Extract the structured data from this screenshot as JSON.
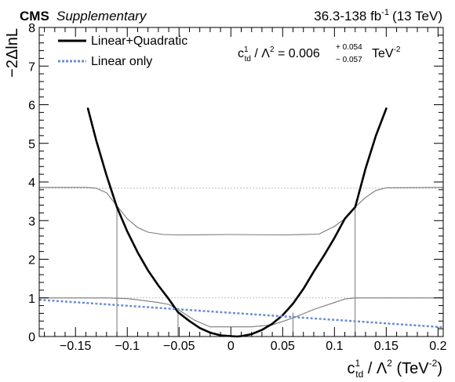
{
  "header": {
    "experiment": "CMS",
    "label": "Supplementary",
    "lumi_main": "36.3-138 fb",
    "lumi_sup": "-1",
    "energy": "(13 TeV)"
  },
  "result": {
    "param_main": "c",
    "param_sup": "1",
    "param_sub": "td",
    "sep": " / ",
    "lambda": "Λ",
    "lambda_sup": "2",
    "equals": " = 0.006",
    "err_up": "+ 0.054",
    "err_down": "− 0.057",
    "unit": "TeV",
    "unit_sup": "-2"
  },
  "axes": {
    "ylabel": "−2ΔlnL",
    "xlabel_main": "c",
    "xlabel_sup": "1",
    "xlabel_sub": "td",
    "xlabel_rest": " / Λ",
    "xlabel_sup2": "2",
    "xlabel_unit": " (TeV",
    "xlabel_unit_sup": "-2",
    "xlabel_close": ")"
  },
  "chart_data": {
    "type": "line",
    "xlim": [
      -0.185,
      0.205
    ],
    "ylim": [
      0,
      8
    ],
    "xticks": [
      {
        "value": -0.15,
        "label": "−0.15"
      },
      {
        "value": -0.1,
        "label": "−0.1"
      },
      {
        "value": -0.05,
        "label": "−0.05"
      },
      {
        "value": 0,
        "label": "0"
      },
      {
        "value": 0.05,
        "label": "0.05"
      },
      {
        "value": 0.1,
        "label": "0.1"
      },
      {
        "value": 0.15,
        "label": "0.15"
      },
      {
        "value": 0.2,
        "label": "0.2"
      }
    ],
    "yticks": [
      {
        "value": 0,
        "label": "0"
      },
      {
        "value": 1,
        "label": "1"
      },
      {
        "value": 2,
        "label": "2"
      },
      {
        "value": 3,
        "label": "3"
      },
      {
        "value": 4,
        "label": "4"
      },
      {
        "value": 5,
        "label": "5"
      },
      {
        "value": 6,
        "label": "6"
      },
      {
        "value": 7,
        "label": "7"
      },
      {
        "value": 8,
        "label": "8"
      }
    ],
    "series": [
      {
        "name": "Linear+Quadratic",
        "color": "#000000",
        "style": "solid",
        "x": [
          -0.138,
          -0.13,
          -0.12,
          -0.11,
          -0.1,
          -0.09,
          -0.08,
          -0.07,
          -0.06,
          -0.051,
          -0.04,
          -0.03,
          -0.02,
          -0.01,
          0,
          0.006,
          0.01,
          0.02,
          0.03,
          0.04,
          0.05,
          0.06,
          0.07,
          0.08,
          0.09,
          0.1,
          0.11,
          0.12,
          0.13,
          0.14,
          0.15
        ],
        "y": [
          5.9,
          5.08,
          4.17,
          3.35,
          2.72,
          2.18,
          1.71,
          1.32,
          0.97,
          0.63,
          0.4,
          0.22,
          0.1,
          0.03,
          0.01,
          0.0,
          0.01,
          0.06,
          0.17,
          0.33,
          0.55,
          0.85,
          1.23,
          1.68,
          2.1,
          2.55,
          3.05,
          3.35,
          4.35,
          5.2,
          5.9
        ]
      },
      {
        "name": "Linear only",
        "color": "#6a8fd0",
        "style": "dotted",
        "x": [
          -0.185,
          0.205
        ],
        "y": [
          0.95,
          0.24
        ]
      }
    ],
    "band_curves": [
      {
        "x": [
          -0.185,
          -0.14,
          -0.13,
          -0.12,
          -0.11,
          -0.1,
          -0.09,
          -0.08,
          -0.065,
          -0.05,
          0,
          0.05,
          0.085,
          0.1,
          0.11,
          0.12,
          0.13,
          0.14,
          0.15,
          0.205
        ],
        "y": [
          3.86,
          3.86,
          3.84,
          3.72,
          3.38,
          3.05,
          2.82,
          2.7,
          2.64,
          2.63,
          2.64,
          2.63,
          2.65,
          2.85,
          3.05,
          3.35,
          3.6,
          3.78,
          3.85,
          3.86
        ]
      },
      {
        "x": [
          -0.185,
          -0.12,
          -0.1,
          -0.09,
          -0.07,
          -0.06,
          -0.05,
          -0.035,
          -0.02,
          0,
          0.02,
          0.04,
          0.06,
          0.08,
          0.1,
          0.11,
          0.12,
          0.205
        ],
        "y": [
          1.0,
          1.0,
          0.98,
          0.95,
          0.88,
          0.83,
          0.68,
          0.42,
          0.25,
          0.25,
          0.25,
          0.3,
          0.48,
          0.7,
          0.88,
          0.97,
          1.0,
          1.0
        ]
      }
    ],
    "reference_lines": [
      1,
      3.84
    ],
    "interval_marks": [
      -0.11,
      -0.051,
      0.06,
      0.12
    ]
  }
}
